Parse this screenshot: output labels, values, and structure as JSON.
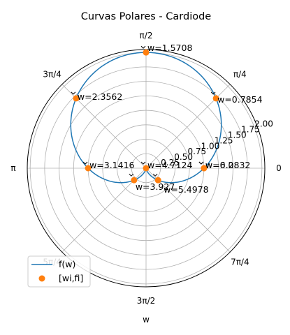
{
  "chart_data": {
    "type": "line",
    "projection": "polar",
    "title": "Curvas Polares - Cardiode",
    "xlabel": "w",
    "ylabel": "",
    "theta_tick_labels": [
      "0",
      "π/4",
      "π/2",
      "3π/4",
      "π",
      "5π/4",
      "3π/2",
      "7π/4"
    ],
    "r_tick_labels": [
      "0.25",
      "0.50",
      "0.75",
      "1.00",
      "1.25",
      "1.50",
      "1.75",
      "2.00"
    ],
    "r_ticks": [
      0.25,
      0.5,
      0.75,
      1.0,
      1.25,
      1.5,
      1.75,
      2.0
    ],
    "rlim": [
      0,
      2.05
    ],
    "r_label_angle_deg": 22.5,
    "grid": true,
    "legend_position": "lower-left",
    "series": [
      {
        "name": "f(w)",
        "kind": "line",
        "color": "#1f77b4",
        "function": "r = 1 + sin(w)",
        "w_range": [
          0,
          6.2832
        ]
      },
      {
        "name": "[wi,fi]",
        "kind": "scatter",
        "color": "#ff7f0e",
        "points": [
          {
            "w": 0.0,
            "r": 1.0
          },
          {
            "w": 0.7854,
            "r": 1.7071
          },
          {
            "w": 1.5708,
            "r": 2.0
          },
          {
            "w": 2.3562,
            "r": 1.7071
          },
          {
            "w": 3.1416,
            "r": 1.0
          },
          {
            "w": 3.927,
            "r": 0.2929
          },
          {
            "w": 4.7124,
            "r": 0.0
          },
          {
            "w": 5.4978,
            "r": 0.2929
          },
          {
            "w": 6.2832,
            "r": 1.0
          }
        ]
      }
    ],
    "annotations": [
      "w=0.0",
      "w=0.7854",
      "w=1.5708",
      "w=2.3562",
      "w=3.1416",
      "w=3.927",
      "w=4.7124",
      "w=5.4978",
      "w=6.2832"
    ]
  }
}
